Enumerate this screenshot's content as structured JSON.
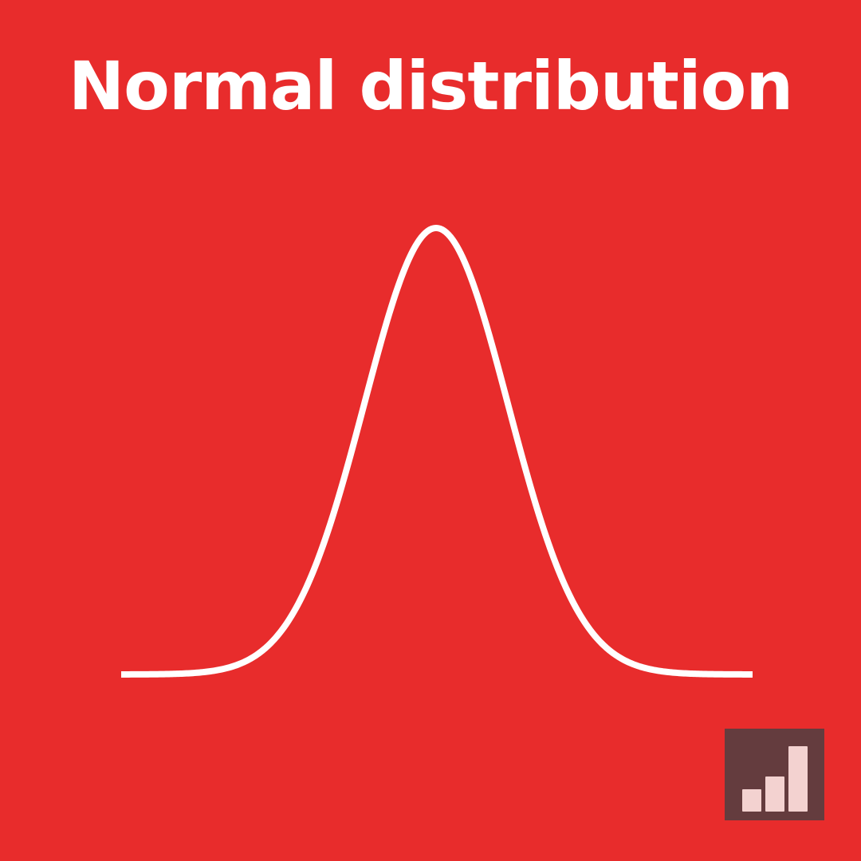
{
  "title": "Normal distribution",
  "colors": {
    "background": "#e82c2c",
    "curve": "#ffffff",
    "title": "#ffffff",
    "logo_background": "#643c3e",
    "logo_bars": "#f3d2d0"
  },
  "logo": {
    "icon": "bar-chart-logo-icon"
  }
}
